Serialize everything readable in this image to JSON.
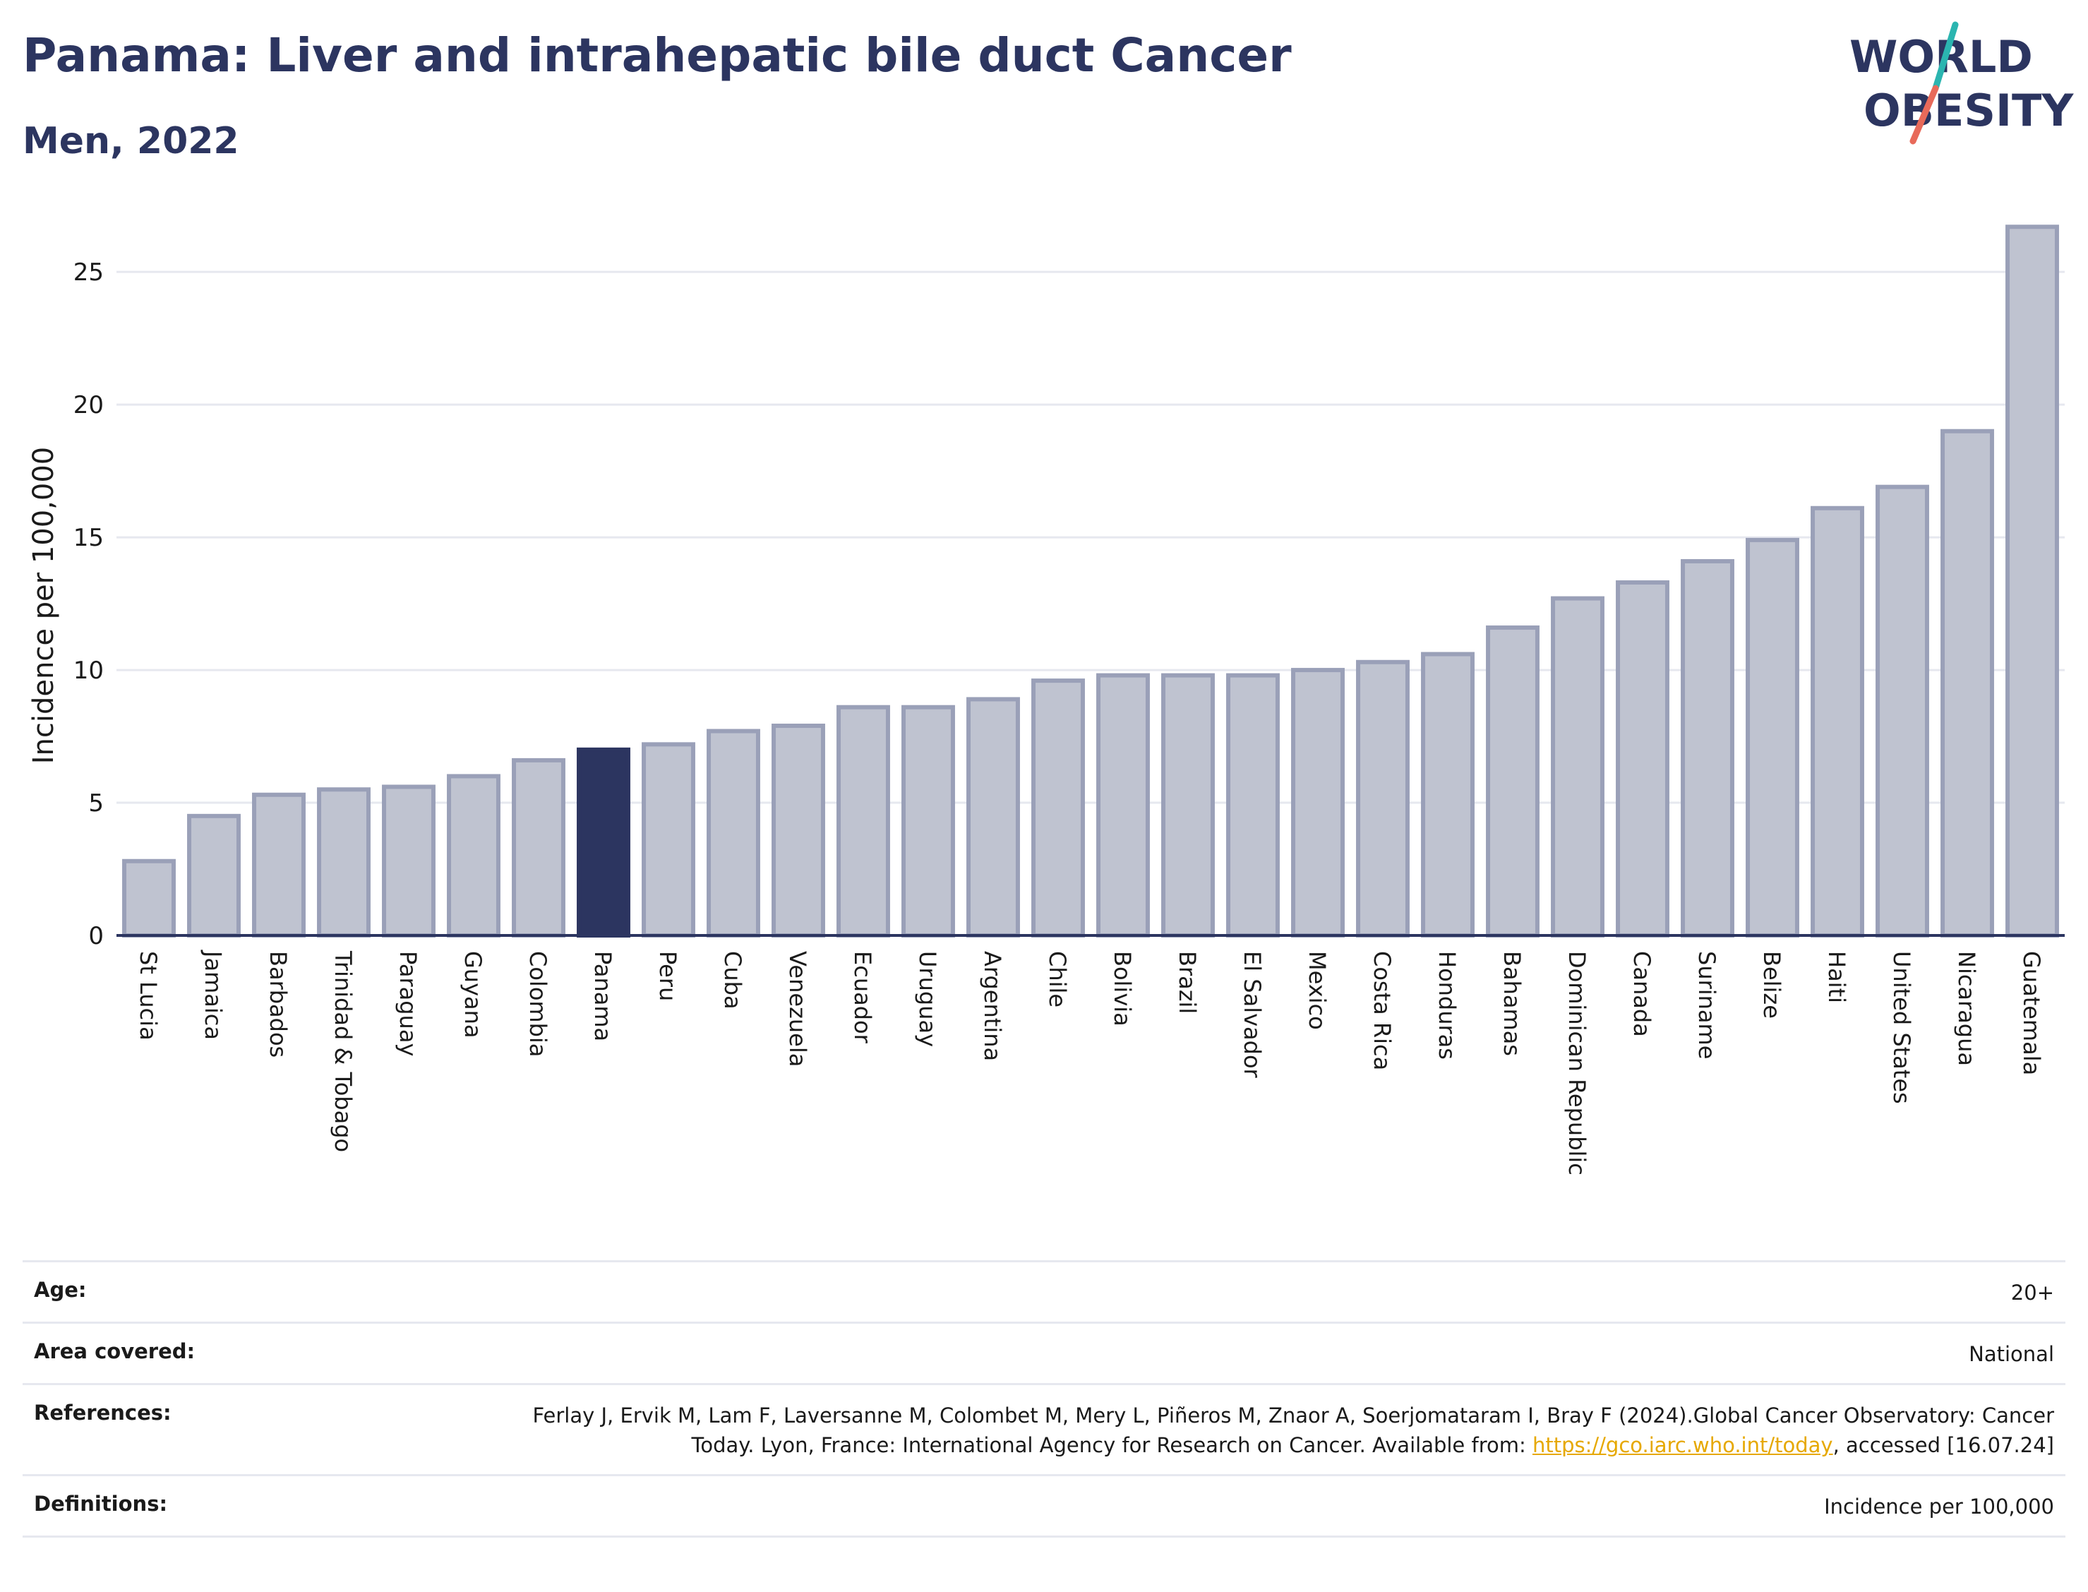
{
  "header": {
    "title": "Panama: Liver and intrahepatic bile duct Cancer",
    "subtitle": "Men, 2022"
  },
  "logo": {
    "line1": "WORLD",
    "line2": "OBESITY",
    "text_color": "#2c3560",
    "slash_colors": [
      "#2bb5b0",
      "#e86a5a"
    ]
  },
  "colors": {
    "bar": "#bfc3d0",
    "bar_edge": "#9aa0b8",
    "highlight": "#2c3560",
    "grid": "#e6e8ef"
  },
  "chart_data": {
    "type": "bar",
    "ylabel": "Incidence per 100,000",
    "ylim": [
      0,
      27
    ],
    "yticks": [
      0,
      5,
      10,
      15,
      20,
      25
    ],
    "highlight": "Panama",
    "categories": [
      "St Lucia",
      "Jamaica",
      "Barbados",
      "Trinidad & Tobago",
      "Paraguay",
      "Guyana",
      "Colombia",
      "Panama",
      "Peru",
      "Cuba",
      "Venezuela",
      "Ecuador",
      "Uruguay",
      "Argentina",
      "Chile",
      "Bolivia",
      "Brazil",
      "El Salvador",
      "Mexico",
      "Costa Rica",
      "Honduras",
      "Bahamas",
      "Dominican Republic",
      "Canada",
      "Suriname",
      "Belize",
      "Haiti",
      "United States",
      "Nicaragua",
      "Guatemala"
    ],
    "values": [
      2.8,
      4.5,
      5.3,
      5.5,
      5.6,
      6.0,
      6.6,
      7.0,
      7.2,
      7.7,
      7.9,
      8.6,
      8.6,
      8.9,
      9.6,
      9.8,
      9.8,
      9.8,
      10.0,
      10.3,
      10.6,
      11.6,
      12.7,
      13.3,
      14.1,
      14.9,
      16.1,
      16.9,
      19.0,
      26.7
    ]
  },
  "meta": {
    "age_label": "Age:",
    "age_value": "20+",
    "area_label": "Area covered:",
    "area_value": "National",
    "refs_label": "References:",
    "refs_text_1": "Ferlay J, Ervik M, Lam F, Laversanne M, Colombet M, Mery L, Piñeros M, Znaor A, Soerjomataram I, Bray F (2024).Global Cancer Observatory: Cancer Today. Lyon, France: International Agency for Research on Cancer. Available from: ",
    "refs_link": "https://gco.iarc.who.int/today",
    "refs_text_2": ", accessed [16.07.24]",
    "defs_label": "Definitions:",
    "defs_value": "Incidence per 100,000"
  }
}
